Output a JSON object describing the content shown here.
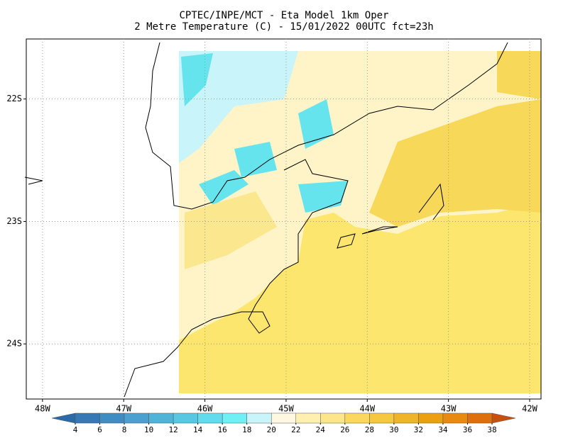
{
  "header": {
    "title": "CPTEC/INPE/MCT -  Eta Model 1km Oper",
    "subtitle": "2 Metre Temperature (C) - 15/01/2022 00UTC fct=23h"
  },
  "map": {
    "xlim": [
      -48.2,
      -41.86
    ],
    "ylim": [
      -24.45,
      -21.51
    ],
    "xticks": [
      {
        "value": -48,
        "label": "48W"
      },
      {
        "value": -47,
        "label": "47W"
      },
      {
        "value": -46,
        "label": "46W"
      },
      {
        "value": -45,
        "label": "45W"
      },
      {
        "value": -44,
        "label": "44W"
      },
      {
        "value": -43,
        "label": "43W"
      },
      {
        "value": -42,
        "label": "42W"
      }
    ],
    "yticks": [
      {
        "value": -22,
        "label": "22S"
      },
      {
        "value": -23,
        "label": "23S"
      },
      {
        "value": -24,
        "label": "24S"
      }
    ],
    "grid": true
  },
  "colorbar": {
    "ticks": [
      4,
      6,
      8,
      10,
      12,
      14,
      16,
      18,
      20,
      22,
      24,
      26,
      28,
      30,
      32,
      34,
      36,
      38
    ],
    "colors": [
      "#2a6aa8",
      "#3479b6",
      "#3e8cc4",
      "#4aa0ce",
      "#50b4d8",
      "#58c8e2",
      "#60dcec",
      "#6ef0f4",
      "#c8f4fa",
      "#fff8e0",
      "#fff0b0",
      "#fde68a",
      "#fad860",
      "#f5c840",
      "#f0b428",
      "#eca010",
      "#e88a10",
      "#df6e0c",
      "#c9500a"
    ]
  }
}
